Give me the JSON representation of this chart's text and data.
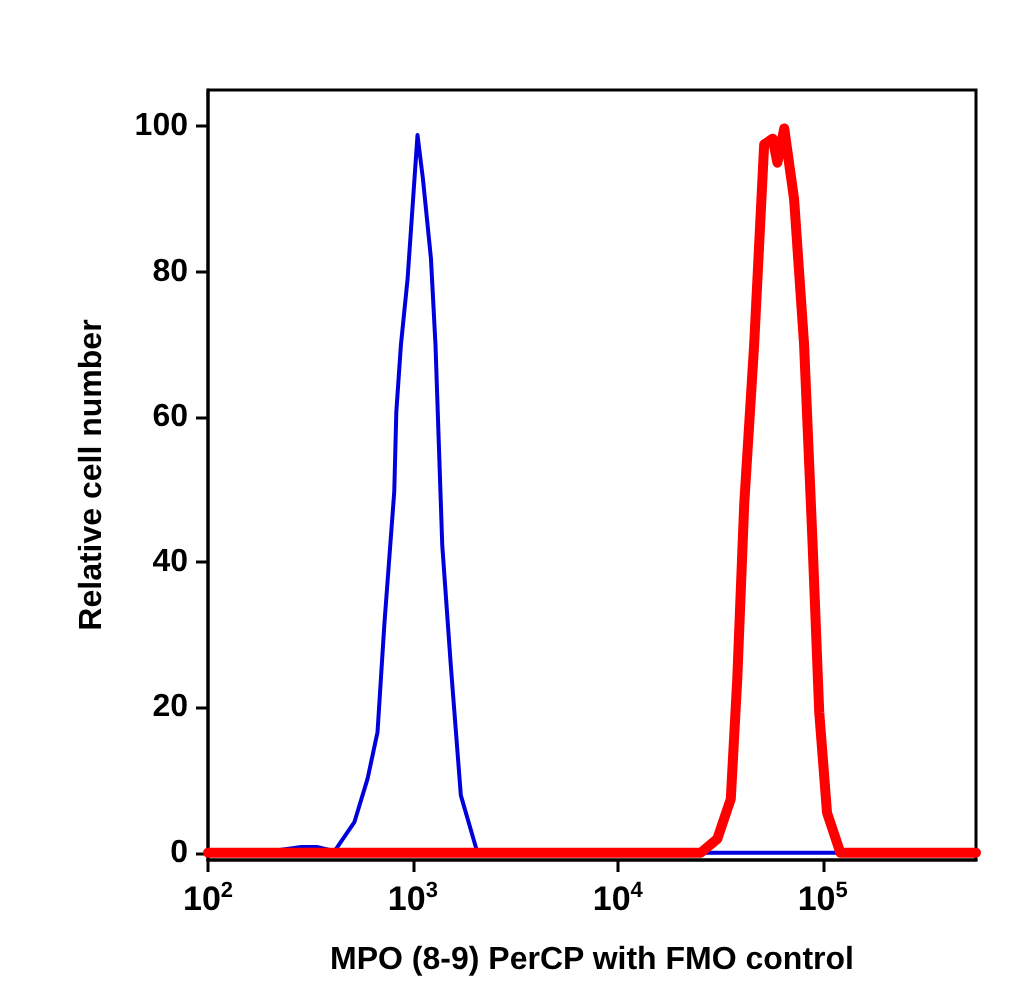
{
  "chart_data": {
    "type": "line",
    "xlabel": "MPO (8-9) PerCP with FMO control",
    "ylabel": "Relative cell number",
    "log": "x",
    "xlim": [
      100,
      560000
    ],
    "xticks": [
      {
        "value": 100,
        "label": "10$^{2}$"
      },
      {
        "value": 1000,
        "label": "10$^{3}$"
      },
      {
        "value": 10000,
        "label": "10$^{4}$"
      },
      {
        "value": 100000,
        "label": "10$^{5}$"
      }
    ],
    "ylim": [
      -1,
      105
    ],
    "yticks": [
      0,
      20,
      40,
      60,
      80,
      100
    ],
    "marker": "none",
    "line_style": "solid",
    "series": [
      {
        "color": "#0000dd",
        "x": [
          181,
          285,
          340,
          414,
          518,
          601,
          672,
          725,
          811,
          830,
          874,
          942,
          1053,
          1119,
          1225,
          1289,
          1391,
          1531,
          1714,
          2066,
          560000
        ],
        "values": [
          0,
          0.8,
          0.8,
          0.2,
          4.2,
          10.2,
          16.6,
          31.3,
          49.7,
          60.7,
          69.9,
          79,
          98.8,
          92.8,
          81.8,
          69.9,
          42.3,
          25.8,
          7.9,
          0,
          0
        ]
      },
      {
        "color": "#ff0000",
        "x": [
          100,
          25400,
          30600,
          35600,
          38300,
          41400,
          46300,
          51800,
          57000,
          60100,
          64900,
          72500,
          81100,
          89300,
          96200,
          105000,
          122000,
          560000
        ],
        "values": [
          0,
          0,
          1.9,
          7.4,
          24,
          48,
          70,
          97.5,
          98.3,
          95,
          99.7,
          90,
          70,
          42.4,
          19.3,
          5.5,
          0,
          0
        ]
      }
    ]
  }
}
